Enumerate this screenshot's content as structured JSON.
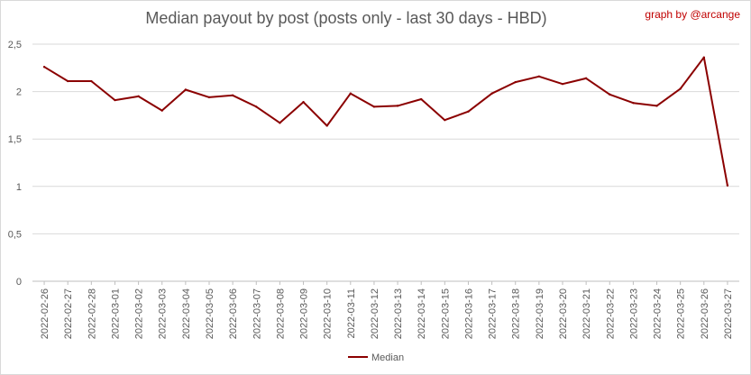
{
  "chart_data": {
    "type": "line",
    "title": "Median payout by post (posts only - last 30 days - HBD)",
    "credit": "graph by @arcange",
    "xlabel": "",
    "ylabel": "",
    "ylim": [
      0,
      2.5
    ],
    "yticks": [
      "0",
      "0,5",
      "1",
      "1,5",
      "2",
      "2,5"
    ],
    "grid": true,
    "legend_position": "bottom",
    "categories": [
      "2022-02-26",
      "2022-02-27",
      "2022-02-28",
      "2022-03-01",
      "2022-03-02",
      "2022-03-03",
      "2022-03-04",
      "2022-03-05",
      "2022-03-06",
      "2022-03-07",
      "2022-03-08",
      "2022-03-09",
      "2022-03-10",
      "2022-03-11",
      "2022-03-12",
      "2022-03-13",
      "2022-03-14",
      "2022-03-15",
      "2022-03-16",
      "2022-03-17",
      "2022-03-18",
      "2022-03-19",
      "2022-03-20",
      "2022-03-21",
      "2022-03-22",
      "2022-03-23",
      "2022-03-24",
      "2022-03-25",
      "2022-03-26",
      "2022-03-27"
    ],
    "series": [
      {
        "name": "Median",
        "color": "#8b0000",
        "values": [
          2.26,
          2.11,
          2.11,
          1.91,
          1.95,
          1.8,
          2.02,
          1.94,
          1.96,
          1.84,
          1.67,
          1.89,
          1.64,
          1.98,
          1.84,
          1.85,
          1.92,
          1.7,
          1.79,
          1.98,
          2.1,
          2.16,
          2.08,
          2.14,
          1.97,
          1.88,
          1.85,
          2.03,
          2.36,
          1.01
        ]
      }
    ]
  }
}
